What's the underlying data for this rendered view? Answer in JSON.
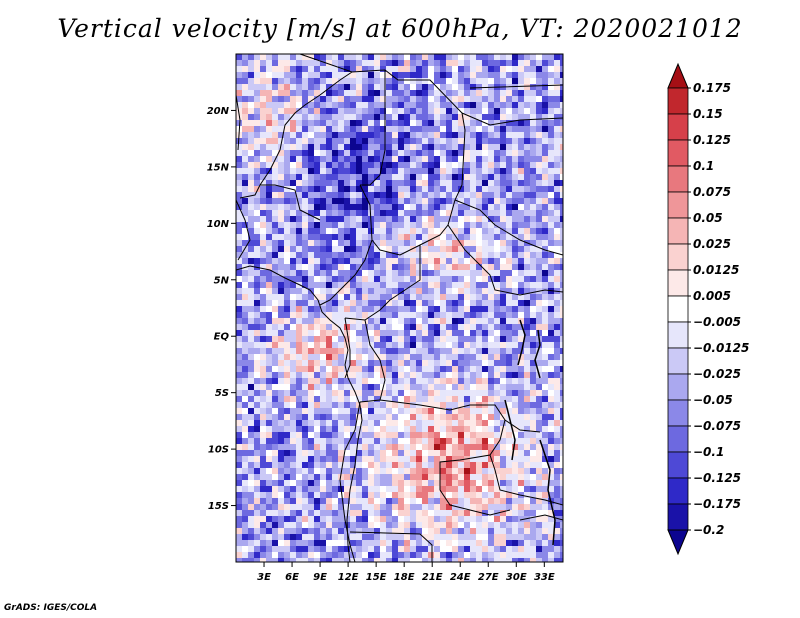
{
  "title": "Vertical velocity [m/s] at 600hPa, VT: 2020021012",
  "credit": "GrADS: IGES/COLA",
  "chart_data": {
    "type": "heatmap",
    "title": "Vertical velocity [m/s] at 600hPa, VT: 2020021012",
    "variable": "Vertical velocity",
    "units": "m/s",
    "level": "600hPa",
    "valid_time": "2020021012",
    "x_axis": {
      "type": "longitude",
      "range": [
        0,
        35
      ],
      "ticks": [
        3,
        6,
        9,
        12,
        15,
        18,
        21,
        24,
        27,
        30,
        33
      ],
      "tick_labels": [
        "3E",
        "6E",
        "9E",
        "12E",
        "15E",
        "18E",
        "21E",
        "24E",
        "27E",
        "30E",
        "33E"
      ]
    },
    "y_axis": {
      "type": "latitude",
      "range": [
        -20,
        25
      ],
      "ticks": [
        20,
        15,
        10,
        5,
        0,
        -5,
        -10,
        -15
      ],
      "tick_labels": [
        "20N",
        "15N",
        "10N",
        "5N",
        "EQ",
        "5S",
        "10S",
        "15S"
      ]
    },
    "colorbar": {
      "orientation": "vertical",
      "position": "right",
      "extend": "both",
      "levels": [
        0.175,
        0.15,
        0.125,
        0.1,
        0.075,
        0.05,
        0.025,
        0.0125,
        0.005,
        -0.005,
        -0.0125,
        -0.025,
        -0.05,
        -0.075,
        -0.1,
        -0.125,
        -0.175,
        -0.2
      ],
      "labels": [
        "0.175",
        "0.15",
        "0.125",
        "0.1",
        "0.075",
        "0.05",
        "0.025",
        "0.0125",
        "0.005",
        "−0.005",
        "−0.0125",
        "−0.025",
        "−0.05",
        "−0.075",
        "−0.1",
        "−0.125",
        "−0.175",
        "−0.2"
      ],
      "colors": [
        "#a50f15",
        "#c1272d",
        "#d6404a",
        "#e15a63",
        "#e8787e",
        "#ef9699",
        "#f5b5b5",
        "#fad2d0",
        "#fde9e8",
        "#ffffff",
        "#e6e6fb",
        "#cbc9f6",
        "#aaa8ef",
        "#8b88e8",
        "#6d69e0",
        "#4e49d6",
        "#2f29c8",
        "#1a12a8",
        "#0c0590"
      ]
    }
  }
}
